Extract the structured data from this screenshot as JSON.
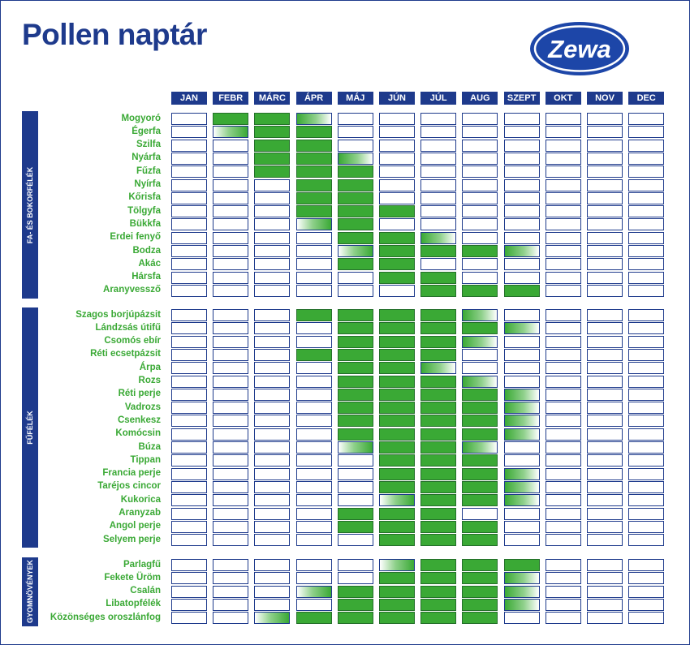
{
  "title": "Pollen naptár",
  "logo_text": "Zewa",
  "colors": {
    "navy": "#1e3a8c",
    "green": "#3aa935",
    "logo_blue": "#1d46a8"
  },
  "chart_data": {
    "type": "table",
    "months": [
      "JAN",
      "FEBR",
      "MÁRC",
      "ÁPR",
      "MÁJ",
      "JÚN",
      "JÚL",
      "AUG",
      "SZEPT",
      "OKT",
      "NOV",
      "DEC"
    ],
    "legend_note": "",
    "groups": [
      {
        "name": "FA- ÉS BOKORFÉLÉK",
        "rows": [
          {
            "plant": "Mogyoró",
            "cells": [
              "",
              "F",
              "F",
              "R",
              "",
              "",
              "",
              "",
              "",
              "",
              "",
              ""
            ]
          },
          {
            "plant": "Égerfa",
            "cells": [
              "",
              "L",
              "F",
              "F",
              "",
              "",
              "",
              "",
              "",
              "",
              "",
              ""
            ]
          },
          {
            "plant": "Szilfa",
            "cells": [
              "",
              "",
              "F",
              "F",
              "",
              "",
              "",
              "",
              "",
              "",
              "",
              ""
            ]
          },
          {
            "plant": "Nyárfa",
            "cells": [
              "",
              "",
              "F",
              "F",
              "R",
              "",
              "",
              "",
              "",
              "",
              "",
              ""
            ]
          },
          {
            "plant": "Fűzfa",
            "cells": [
              "",
              "",
              "F",
              "F",
              "F",
              "",
              "",
              "",
              "",
              "",
              "",
              ""
            ]
          },
          {
            "plant": "Nyírfa",
            "cells": [
              "",
              "",
              "",
              "F",
              "F",
              "",
              "",
              "",
              "",
              "",
              "",
              ""
            ]
          },
          {
            "plant": "Kőrisfa",
            "cells": [
              "",
              "",
              "",
              "F",
              "F",
              "",
              "",
              "",
              "",
              "",
              "",
              ""
            ]
          },
          {
            "plant": "Tölgyfa",
            "cells": [
              "",
              "",
              "",
              "F",
              "F",
              "F",
              "",
              "",
              "",
              "",
              "",
              ""
            ]
          },
          {
            "plant": "Bükkfa",
            "cells": [
              "",
              "",
              "",
              "L",
              "F",
              "",
              "",
              "",
              "",
              "",
              "",
              ""
            ]
          },
          {
            "plant": "Erdei fenyő",
            "cells": [
              "",
              "",
              "",
              "",
              "F",
              "F",
              "R",
              "",
              "",
              "",
              "",
              ""
            ]
          },
          {
            "plant": "Bodza",
            "cells": [
              "",
              "",
              "",
              "",
              "L",
              "F",
              "F",
              "F",
              "R",
              "",
              "",
              ""
            ]
          },
          {
            "plant": "Akác",
            "cells": [
              "",
              "",
              "",
              "",
              "F",
              "F",
              "",
              "",
              "",
              "",
              "",
              ""
            ]
          },
          {
            "plant": "Hársfa",
            "cells": [
              "",
              "",
              "",
              "",
              "",
              "F",
              "F",
              "",
              "",
              "",
              "",
              ""
            ]
          },
          {
            "plant": "Aranyvessző",
            "cells": [
              "",
              "",
              "",
              "",
              "",
              "",
              "F",
              "F",
              "F",
              "",
              "",
              ""
            ]
          }
        ]
      },
      {
        "name": "FŰFÉLÉK",
        "rows": [
          {
            "plant": "Szagos borjúpázsit",
            "cells": [
              "",
              "",
              "",
              "F",
              "F",
              "F",
              "F",
              "R",
              "",
              "",
              "",
              ""
            ]
          },
          {
            "plant": "Lándzsás útifű",
            "cells": [
              "",
              "",
              "",
              "",
              "F",
              "F",
              "F",
              "F",
              "R",
              "",
              "",
              ""
            ]
          },
          {
            "plant": "Csomós ebír",
            "cells": [
              "",
              "",
              "",
              "",
              "F",
              "F",
              "F",
              "R",
              "",
              "",
              "",
              ""
            ]
          },
          {
            "plant": "Réti ecsetpázsit",
            "cells": [
              "",
              "",
              "",
              "F",
              "F",
              "F",
              "F",
              "",
              "",
              "",
              "",
              ""
            ]
          },
          {
            "plant": "Árpa",
            "cells": [
              "",
              "",
              "",
              "",
              "F",
              "F",
              "R",
              "",
              "",
              "",
              "",
              ""
            ]
          },
          {
            "plant": "Rozs",
            "cells": [
              "",
              "",
              "",
              "",
              "F",
              "F",
              "F",
              "R",
              "",
              "",
              "",
              ""
            ]
          },
          {
            "plant": "Réti perje",
            "cells": [
              "",
              "",
              "",
              "",
              "F",
              "F",
              "F",
              "F",
              "R",
              "",
              "",
              ""
            ]
          },
          {
            "plant": "Vadrozs",
            "cells": [
              "",
              "",
              "",
              "",
              "F",
              "F",
              "F",
              "F",
              "R",
              "",
              "",
              ""
            ]
          },
          {
            "plant": "Csenkesz",
            "cells": [
              "",
              "",
              "",
              "",
              "F",
              "F",
              "F",
              "F",
              "R",
              "",
              "",
              ""
            ]
          },
          {
            "plant": "Komócsin",
            "cells": [
              "",
              "",
              "",
              "",
              "F",
              "F",
              "F",
              "F",
              "R",
              "",
              "",
              ""
            ]
          },
          {
            "plant": "Búza",
            "cells": [
              "",
              "",
              "",
              "",
              "L",
              "F",
              "F",
              "R",
              "",
              "",
              "",
              ""
            ]
          },
          {
            "plant": "Tippan",
            "cells": [
              "",
              "",
              "",
              "",
              "",
              "F",
              "F",
              "F",
              "",
              "",
              "",
              ""
            ]
          },
          {
            "plant": "Francia perje",
            "cells": [
              "",
              "",
              "",
              "",
              "",
              "F",
              "F",
              "F",
              "R",
              "",
              "",
              ""
            ]
          },
          {
            "plant": "Taréjos cincor",
            "cells": [
              "",
              "",
              "",
              "",
              "",
              "F",
              "F",
              "F",
              "R",
              "",
              "",
              ""
            ]
          },
          {
            "plant": "Kukorica",
            "cells": [
              "",
              "",
              "",
              "",
              "",
              "L",
              "F",
              "F",
              "R",
              "",
              "",
              ""
            ]
          },
          {
            "plant": "Aranyzab",
            "cells": [
              "",
              "",
              "",
              "",
              "F",
              "F",
              "F",
              "",
              "",
              "",
              "",
              ""
            ]
          },
          {
            "plant": "Angol perje",
            "cells": [
              "",
              "",
              "",
              "",
              "F",
              "F",
              "F",
              "F",
              "",
              "",
              "",
              ""
            ]
          },
          {
            "plant": "Selyem perje",
            "cells": [
              "",
              "",
              "",
              "",
              "",
              "F",
              "F",
              "F",
              "",
              "",
              "",
              ""
            ]
          }
        ]
      },
      {
        "name": "GYOMNÖVÉNYEK",
        "rows": [
          {
            "plant": "Parlagfű",
            "cells": [
              "",
              "",
              "",
              "",
              "",
              "L",
              "F",
              "F",
              "F",
              "",
              "",
              ""
            ]
          },
          {
            "plant": "Fekete Üröm",
            "cells": [
              "",
              "",
              "",
              "",
              "",
              "F",
              "F",
              "F",
              "R",
              "",
              "",
              ""
            ]
          },
          {
            "plant": "Csalán",
            "cells": [
              "",
              "",
              "",
              "L",
              "F",
              "F",
              "F",
              "F",
              "R",
              "",
              "",
              ""
            ]
          },
          {
            "plant": "Libatopfélék",
            "cells": [
              "",
              "",
              "",
              "",
              "F",
              "F",
              "F",
              "F",
              "R",
              "",
              "",
              ""
            ]
          },
          {
            "plant": "Közönséges oroszlánfog",
            "cells": [
              "",
              "",
              "L",
              "F",
              "F",
              "F",
              "F",
              "F",
              "",
              "",
              "",
              ""
            ]
          }
        ]
      }
    ]
  }
}
